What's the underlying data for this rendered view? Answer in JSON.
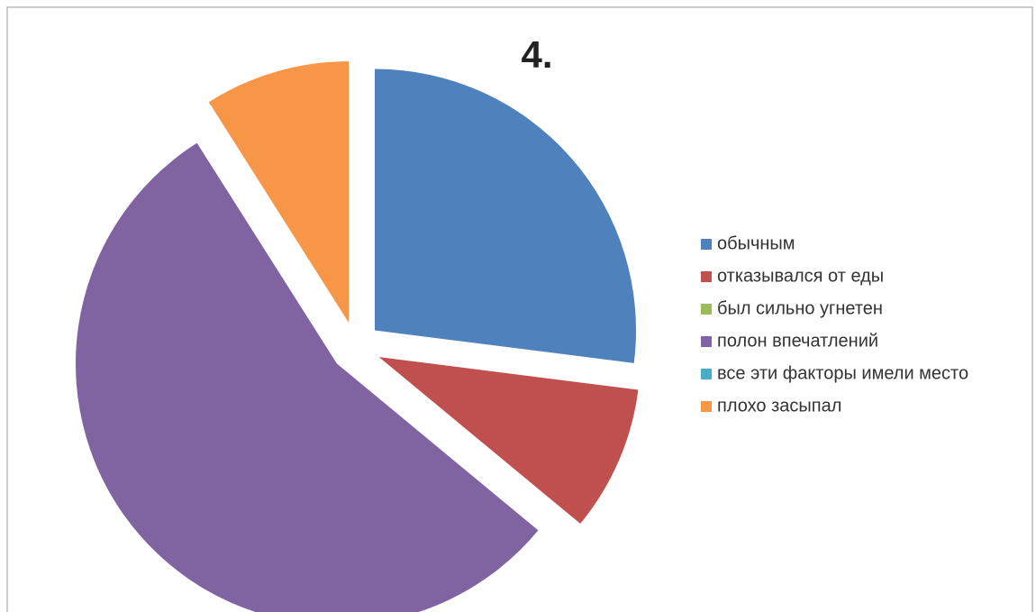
{
  "chart_data": {
    "type": "pie",
    "title": "4.",
    "categories": [
      "обычным",
      "отказывался от еды",
      "был сильно угнетен",
      "полон впечатлений",
      "все эти факторы имели место",
      "плохо засыпал"
    ],
    "values": [
      27,
      9,
      0,
      55,
      0,
      9
    ],
    "colors": [
      "#4f81bd",
      "#c0504d",
      "#9bbb59",
      "#8064a2",
      "#4bacc6",
      "#f79646"
    ],
    "legend": "right"
  }
}
